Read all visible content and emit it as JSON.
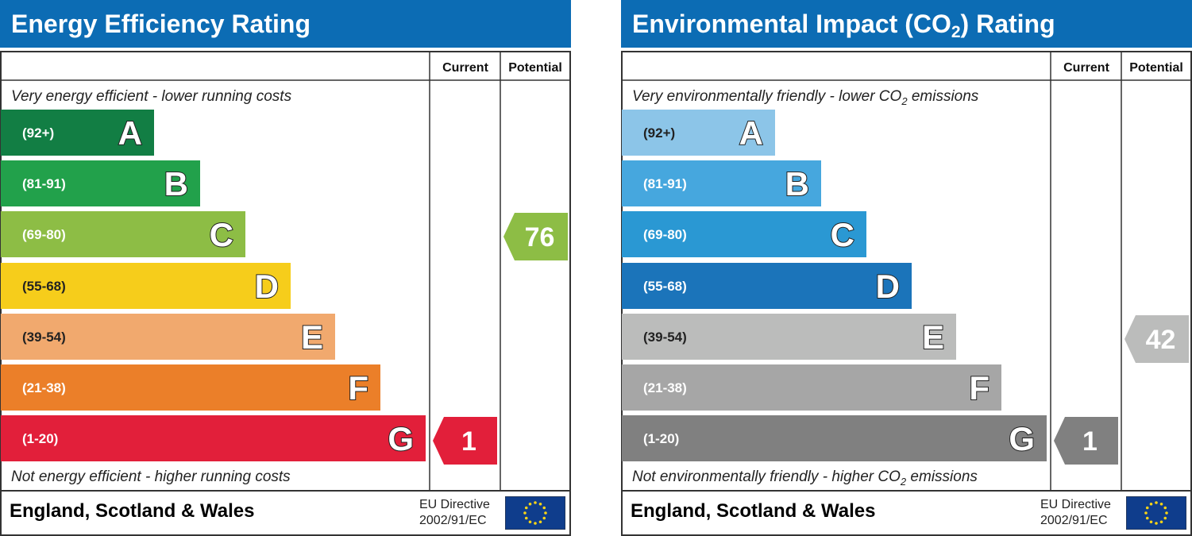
{
  "colors": {
    "title_bar": "#0c6cb4",
    "energy_bands": [
      "#127e44",
      "#22a14b",
      "#8dbd45",
      "#f6cd1b",
      "#f1a96e",
      "#eb7f29",
      "#e21f3a"
    ],
    "env_bands": [
      "#8cc5e8",
      "#46a7de",
      "#2a98d3",
      "#1b74ba",
      "#bbbcbb",
      "#a6a6a6",
      "#808080"
    ],
    "energy_potential": "#8dbd45",
    "energy_current": "#e21f3a",
    "env_potential": "#bbbcbb",
    "env_current": "#808080"
  },
  "chart_data": [
    {
      "type": "bar",
      "title": "Energy Efficiency Rating",
      "columns": [
        "Current",
        "Potential"
      ],
      "top_text": "Very energy efficient - lower running costs",
      "bottom_text": "Not energy efficient - higher running costs",
      "bands": [
        {
          "letter": "A",
          "range": "(92+)"
        },
        {
          "letter": "B",
          "range": "(81-91)"
        },
        {
          "letter": "C",
          "range": "(69-80)"
        },
        {
          "letter": "D",
          "range": "(55-68)"
        },
        {
          "letter": "E",
          "range": "(39-54)"
        },
        {
          "letter": "F",
          "range": "(21-38)"
        },
        {
          "letter": "G",
          "range": "(1-20)"
        }
      ],
      "current": {
        "value": 1,
        "band": "G"
      },
      "potential": {
        "value": 76,
        "band": "C"
      },
      "footer": "England, Scotland & Wales",
      "directive_line1": "EU Directive",
      "directive_line2": "2002/91/EC"
    },
    {
      "type": "bar",
      "title_main": "Environmental Impact (CO",
      "title_sub": "2",
      "title_end": ") Rating",
      "columns": [
        "Current",
        "Potential"
      ],
      "top_text_main": "Very environmentally friendly - lower CO",
      "top_text_sub": "2",
      "top_text_end": " emissions",
      "bottom_text_main": "Not environmentally friendly - higher CO",
      "bottom_text_sub": "2",
      "bottom_text_end": " emissions",
      "bands": [
        {
          "letter": "A",
          "range": "(92+)"
        },
        {
          "letter": "B",
          "range": "(81-91)"
        },
        {
          "letter": "C",
          "range": "(69-80)"
        },
        {
          "letter": "D",
          "range": "(55-68)"
        },
        {
          "letter": "E",
          "range": "(39-54)"
        },
        {
          "letter": "F",
          "range": "(21-38)"
        },
        {
          "letter": "G",
          "range": "(1-20)"
        }
      ],
      "current": {
        "value": 1,
        "band": "G"
      },
      "potential": {
        "value": 42,
        "band": "E"
      },
      "footer": "England, Scotland & Wales",
      "directive_line1": "EU Directive",
      "directive_line2": "2002/91/EC"
    }
  ]
}
